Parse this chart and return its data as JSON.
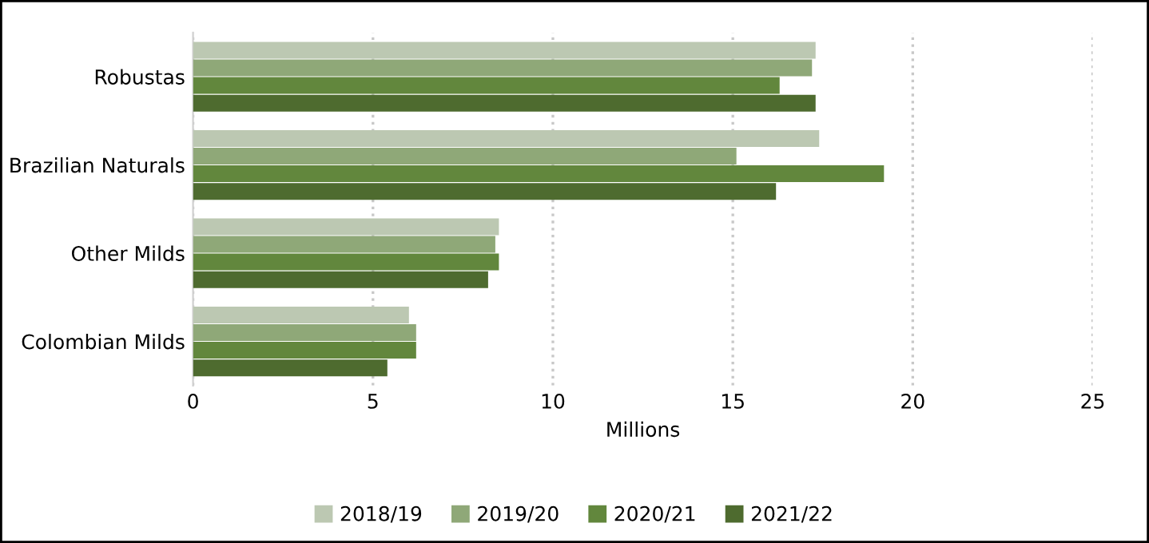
{
  "chart_data": {
    "type": "bar",
    "orientation": "horizontal",
    "xlabel": "Millions",
    "categories": [
      "Robustas",
      "Brazilian Naturals",
      "Other Milds",
      "Colombian Milds"
    ],
    "series": [
      {
        "name": "2018/19",
        "color": "#bcc8b2",
        "values": [
          17.3,
          17.4,
          8.5,
          6.0
        ]
      },
      {
        "name": "2019/20",
        "color": "#8fa878",
        "values": [
          17.2,
          15.1,
          8.4,
          6.2
        ]
      },
      {
        "name": "2020/21",
        "color": "#62873d",
        "values": [
          16.3,
          19.2,
          8.5,
          6.2
        ]
      },
      {
        "name": "2021/22",
        "color": "#4e6b2f",
        "values": [
          17.3,
          16.2,
          8.2,
          5.4
        ]
      }
    ],
    "xlim": [
      0,
      25
    ],
    "xticks": [
      0,
      5,
      10,
      15,
      20,
      25
    ],
    "grid": "x",
    "legend": "bottom"
  }
}
